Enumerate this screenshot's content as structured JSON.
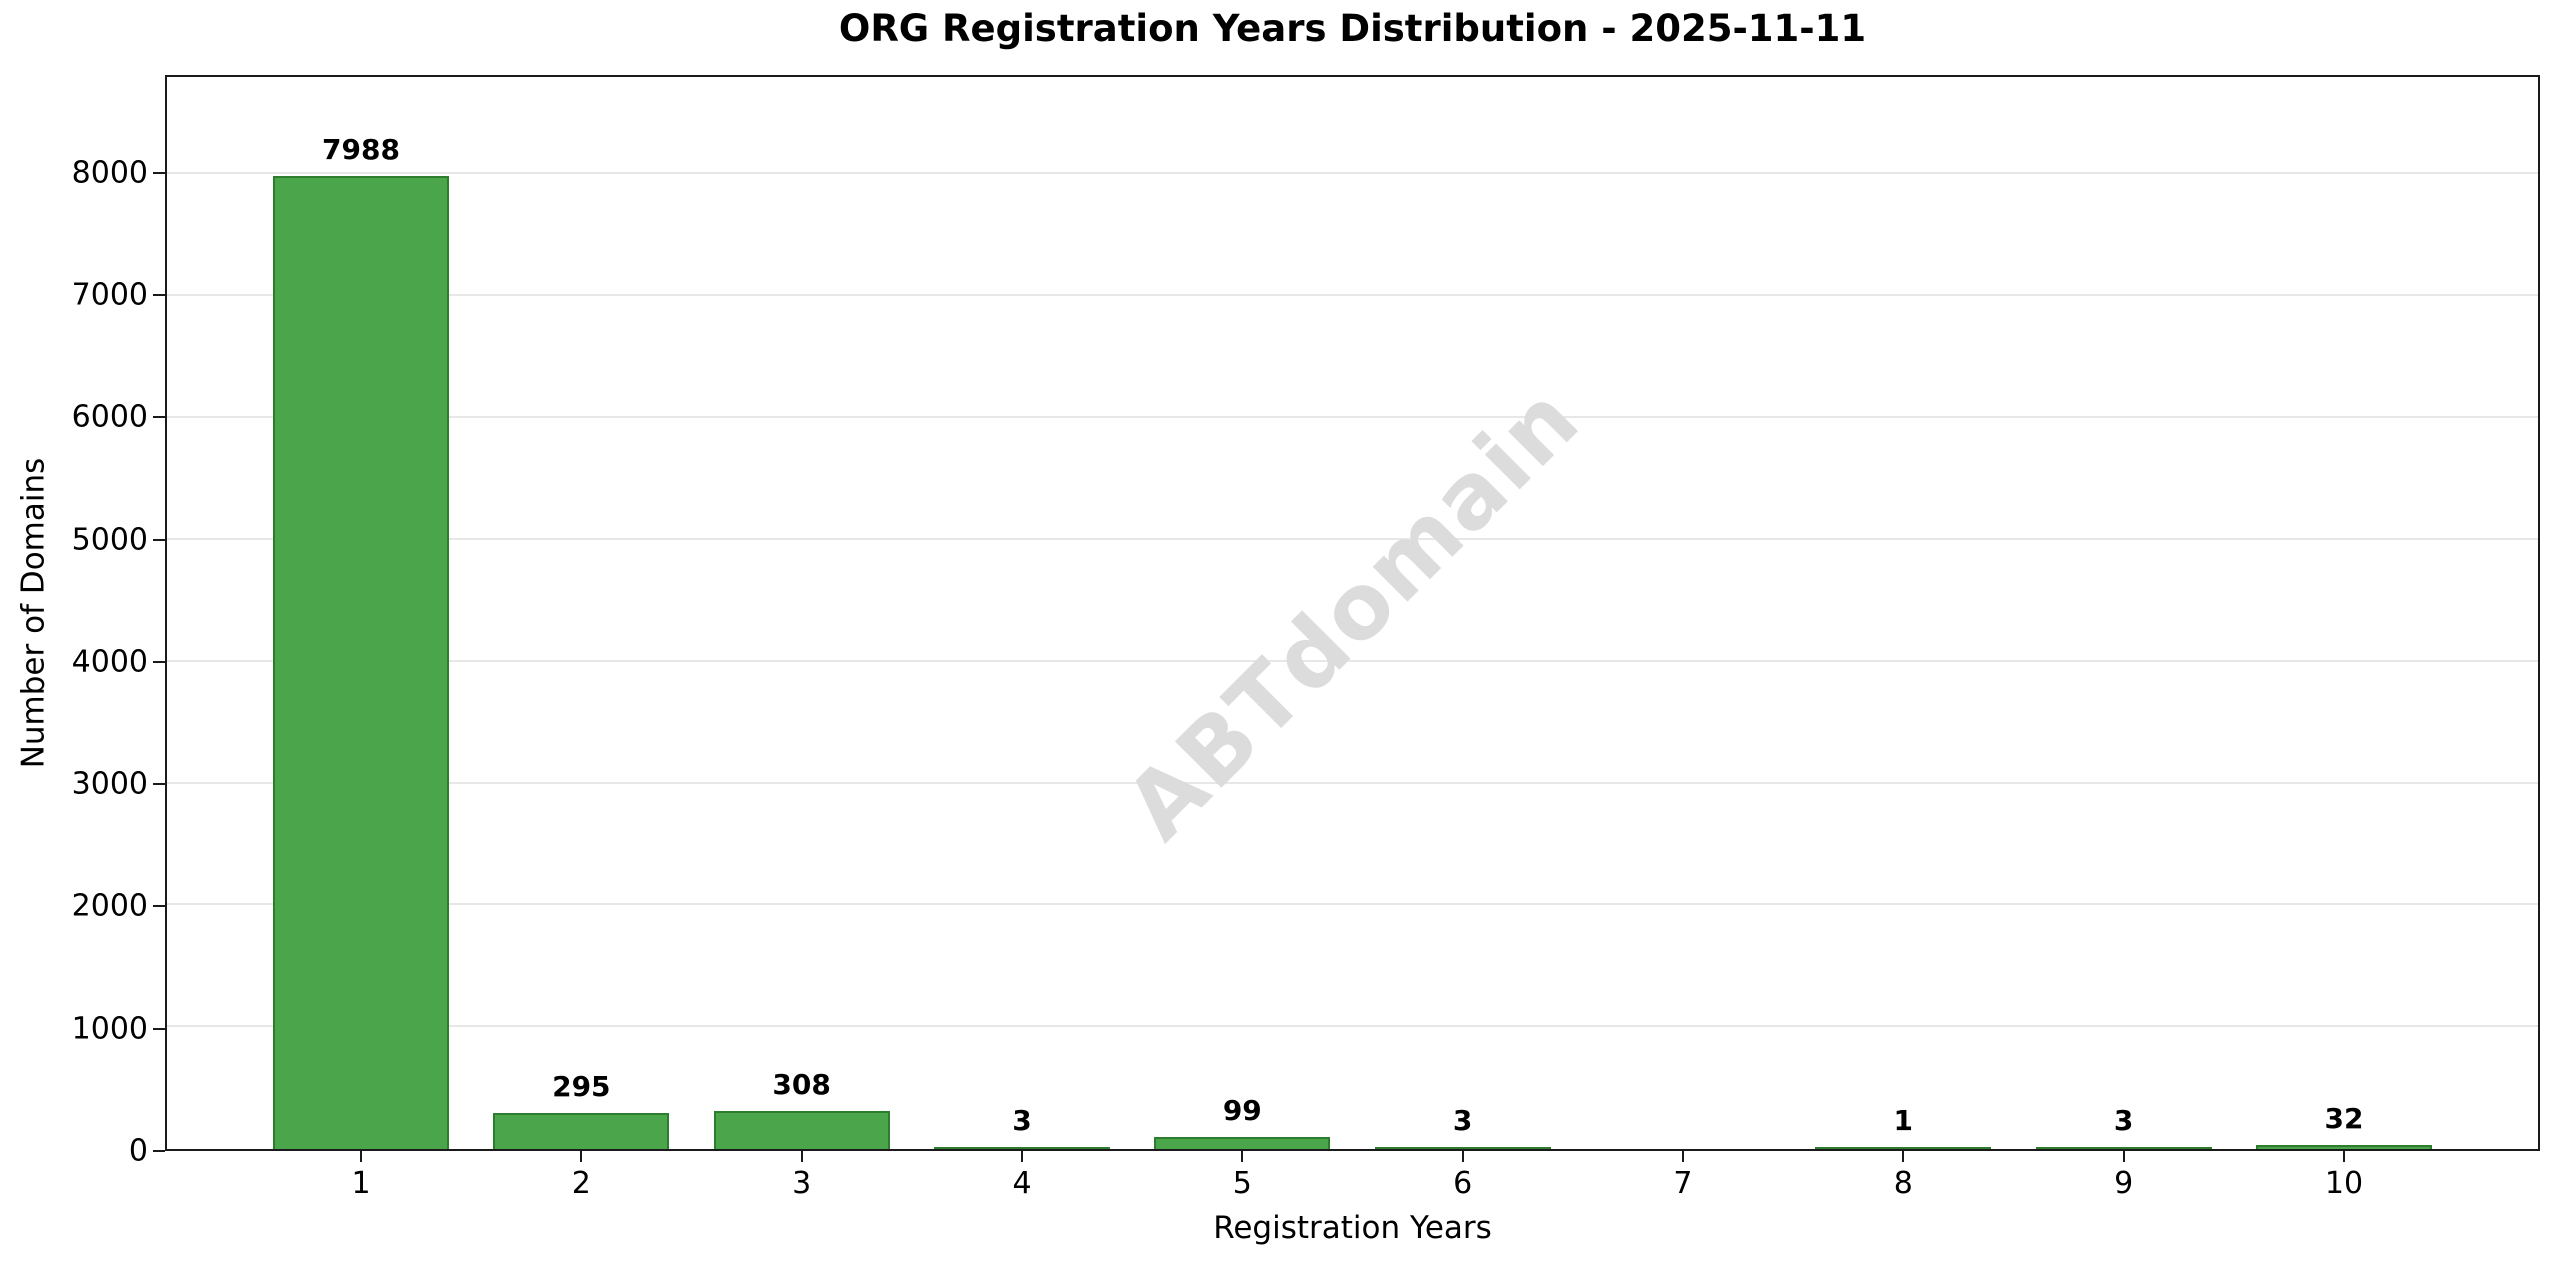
{
  "chart_data": {
    "type": "bar",
    "title": "ORG Registration Years Distribution - 2025-11-11",
    "xlabel": "Registration Years",
    "ylabel": "Number of Domains",
    "categories": [
      "1",
      "2",
      "3",
      "4",
      "5",
      "6",
      "7",
      "8",
      "9",
      "10"
    ],
    "values": [
      7988,
      295,
      308,
      3,
      99,
      3,
      0,
      1,
      3,
      32
    ],
    "bar_value_labels": [
      "7988",
      "295",
      "308",
      "3",
      "99",
      "3",
      "",
      "1",
      "3",
      "32"
    ],
    "ylim": [
      0,
      8800
    ],
    "yticks": [
      0,
      1000,
      2000,
      3000,
      4000,
      5000,
      6000,
      7000,
      8000
    ],
    "grid": "horizontal-only",
    "legend": "none",
    "watermark": "ABTdomain",
    "colors": {
      "bar_fill": "#4ba64b",
      "bar_edge": "#2e7d2e",
      "gridline": "#e7e7e7",
      "watermark": "#dcdcdc",
      "spine": "#1a1a1a",
      "text": "#000000",
      "background": "#ffffff"
    }
  }
}
